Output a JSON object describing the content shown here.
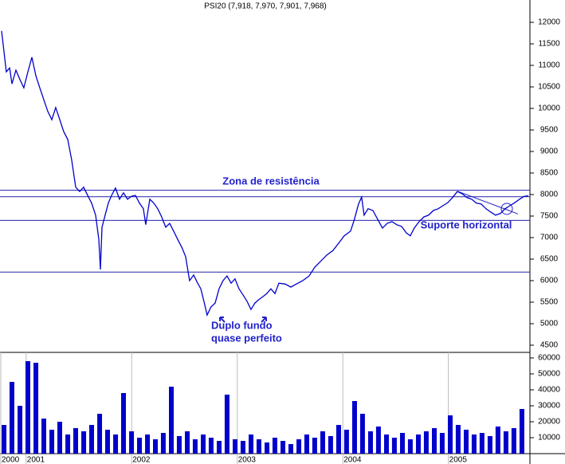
{
  "chart_data": [
    {
      "type": "line",
      "title": "PSI20 (7,918, 7,970, 7,901, 7,968)",
      "color": "#0000cc",
      "xlim": [
        2000.76,
        2005.78
      ],
      "ylim": [
        4333,
        12519
      ],
      "yticks": [
        4500,
        5000,
        5500,
        6000,
        6500,
        7000,
        7500,
        8000,
        8500,
        9000,
        9500,
        10000,
        10500,
        11000,
        11500,
        12000
      ],
      "x": [
        2000.775,
        2000.798,
        2000.82,
        2000.851,
        2000.873,
        2000.911,
        2000.949,
        2000.986,
        2001.024,
        2001.062,
        2001.1,
        2001.137,
        2001.175,
        2001.213,
        2001.251,
        2001.288,
        2001.326,
        2001.364,
        2001.402,
        2001.439,
        2001.477,
        2001.515,
        2001.552,
        2001.59,
        2001.628,
        2001.666,
        2001.696,
        2001.711,
        2001.726,
        2001.756,
        2001.786,
        2001.817,
        2001.854,
        2001.892,
        2001.93,
        2001.968,
        2002.005,
        2002.043,
        2002.081,
        2002.118,
        2002.141,
        2002.179,
        2002.217,
        2002.254,
        2002.292,
        2002.33,
        2002.367,
        2002.405,
        2002.443,
        2002.481,
        2002.518,
        2002.556,
        2002.594,
        2002.632,
        2002.662,
        2002.692,
        2002.722,
        2002.76,
        2002.798,
        2002.835,
        2002.873,
        2002.911,
        2002.949,
        2002.986,
        2003.024,
        2003.062,
        2003.1,
        2003.137,
        2003.175,
        2003.213,
        2003.251,
        2003.288,
        2003.326,
        2003.364,
        2003.402,
        2003.462,
        2003.515,
        2003.567,
        2003.628,
        2003.688,
        2003.741,
        2003.794,
        2003.854,
        2003.915,
        2003.968,
        2004.02,
        2004.081,
        2004.118,
        2004.156,
        2004.186,
        2004.209,
        2004.247,
        2004.292,
        2004.337,
        2004.383,
        2004.428,
        2004.473,
        2004.518,
        2004.564,
        2004.609,
        2004.647,
        2004.684,
        2004.73,
        2004.775,
        2004.82,
        2004.866,
        2004.911,
        2004.956,
        2005.001,
        2005.047,
        2005.092,
        2005.137,
        2005.183,
        2005.228,
        2005.273,
        2005.318,
        2005.364,
        2005.409,
        2005.454,
        2005.5,
        2005.545,
        2005.59,
        2005.635,
        2005.681,
        2005.726,
        2005.764
      ],
      "values": [
        11800,
        11320,
        10850,
        10940,
        10570,
        10890,
        10670,
        10480,
        10850,
        11190,
        10760,
        10480,
        10200,
        9930,
        9740,
        10020,
        9740,
        9460,
        9280,
        8810,
        8170,
        8070,
        8170,
        7980,
        7800,
        7520,
        6960,
        6260,
        7240,
        7520,
        7800,
        7980,
        8150,
        7890,
        8040,
        7890,
        7960,
        7980,
        7800,
        7670,
        7300,
        7890,
        7800,
        7670,
        7480,
        7240,
        7330,
        7150,
        6960,
        6780,
        6560,
        6000,
        6130,
        5940,
        5810,
        5520,
        5200,
        5390,
        5480,
        5810,
        6000,
        6110,
        5940,
        6040,
        5810,
        5670,
        5520,
        5330,
        5480,
        5560,
        5630,
        5700,
        5810,
        5700,
        5940,
        5920,
        5850,
        5920,
        6000,
        6110,
        6310,
        6440,
        6590,
        6700,
        6870,
        7040,
        7150,
        7430,
        7780,
        7940,
        7520,
        7670,
        7630,
        7430,
        7220,
        7330,
        7370,
        7300,
        7260,
        7110,
        7040,
        7220,
        7370,
        7480,
        7520,
        7630,
        7670,
        7740,
        7810,
        7930,
        8070,
        8020,
        7930,
        7890,
        7800,
        7780,
        7670,
        7590,
        7520,
        7560,
        7670,
        7740,
        7810,
        7890,
        7960,
        7970
      ],
      "hlines": [
        8100,
        7950,
        7400,
        6200
      ],
      "trendline": {
        "x": [
          2005.1,
          2005.666
        ],
        "y": [
          8070,
          7550
        ]
      },
      "annotations": [
        "Zona de resistência",
        "Suporte horizontal",
        "Duplo fundo",
        "quase perfeito"
      ]
    },
    {
      "type": "bar",
      "color": "#0000cc",
      "xlim": [
        2000.76,
        2005.78
      ],
      "ylim": [
        0,
        63500
      ],
      "yticks": [
        10000,
        20000,
        30000,
        40000,
        50000,
        60000
      ],
      "xticks": [
        {
          "value": 2000.76,
          "label": "2000"
        },
        2001,
        2002,
        2003,
        2004,
        2005
      ],
      "x": [
        2000.798,
        2000.873,
        2000.949,
        2001.024,
        2001.1,
        2001.175,
        2001.251,
        2001.326,
        2001.402,
        2001.477,
        2001.553,
        2001.628,
        2001.704,
        2001.779,
        2001.855,
        2001.93,
        2002.006,
        2002.081,
        2002.157,
        2002.232,
        2002.307,
        2002.383,
        2002.458,
        2002.534,
        2002.609,
        2002.685,
        2002.76,
        2002.836,
        2002.911,
        2002.987,
        2003.062,
        2003.138,
        2003.213,
        2003.289,
        2003.364,
        2003.44,
        2003.515,
        2003.591,
        2003.666,
        2003.741,
        2003.817,
        2003.892,
        2003.968,
        2004.043,
        2004.119,
        2004.194,
        2004.27,
        2004.345,
        2004.421,
        2004.496,
        2004.572,
        2004.647,
        2004.723,
        2004.798,
        2004.874,
        2004.949,
        2005.025,
        2005.1,
        2005.176,
        2005.251,
        2005.326,
        2005.402,
        2005.477,
        2005.553,
        2005.628,
        2005.704
      ],
      "values": [
        18000,
        45000,
        30000,
        58000,
        57000,
        22000,
        15000,
        20000,
        12000,
        16000,
        14000,
        18000,
        25000,
        15000,
        12000,
        38000,
        14000,
        10000,
        12000,
        9000,
        13000,
        42000,
        11000,
        14000,
        9000,
        12000,
        10000,
        8000,
        37000,
        9000,
        8000,
        12000,
        9000,
        7000,
        10000,
        8000,
        6000,
        9000,
        12000,
        10000,
        14000,
        11000,
        18000,
        15000,
        33000,
        25000,
        14000,
        17000,
        12000,
        10000,
        13000,
        9000,
        12000,
        14000,
        16000,
        13000,
        24000,
        18000,
        15000,
        12000,
        13000,
        11000,
        17000,
        14000,
        16000,
        28000
      ]
    }
  ]
}
